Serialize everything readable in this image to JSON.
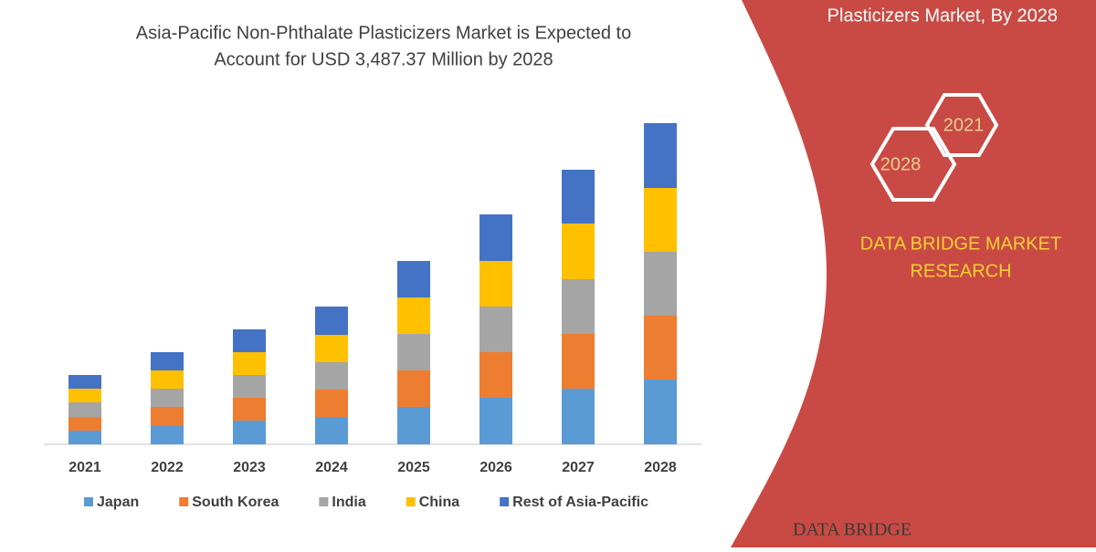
{
  "chart_data": {
    "type": "stacked-bar",
    "title_lines": [
      "Asia-Pacific Non-Phthalate Plasticizers Market is Expected to",
      "Account for USD 3,487.37 Million by 2028"
    ],
    "categories": [
      "2021",
      "2022",
      "2023",
      "2024",
      "2025",
      "2026",
      "2027",
      "2028"
    ],
    "series": [
      {
        "name": "Japan",
        "color": "#5b9bd5",
        "values": [
          15,
          20,
          26,
          30,
          41,
          51,
          61,
          71
        ]
      },
      {
        "name": "South Korea",
        "color": "#ed7d31",
        "values": [
          15,
          21,
          25,
          30,
          40,
          50,
          60,
          70
        ]
      },
      {
        "name": "India",
        "color": "#a5a5a5",
        "values": [
          16,
          20,
          25,
          30,
          40,
          50,
          60,
          70
        ]
      },
      {
        "name": "China",
        "color": "#ffc000",
        "values": [
          15,
          20,
          25,
          30,
          40,
          50,
          61,
          70
        ]
      },
      {
        "name": "Rest of Asia-Pacific",
        "color": "#4472c4",
        "values": [
          15,
          20,
          25,
          31,
          40,
          51,
          59,
          71
        ]
      }
    ]
  },
  "panel": {
    "headline": "Plasticizers Market, By 2028",
    "badges": [
      "2021",
      "2028"
    ],
    "brand_lines": [
      "DATA BRIDGE MARKET",
      "RESEARCH"
    ],
    "logo": "DATA BRIDGE"
  }
}
